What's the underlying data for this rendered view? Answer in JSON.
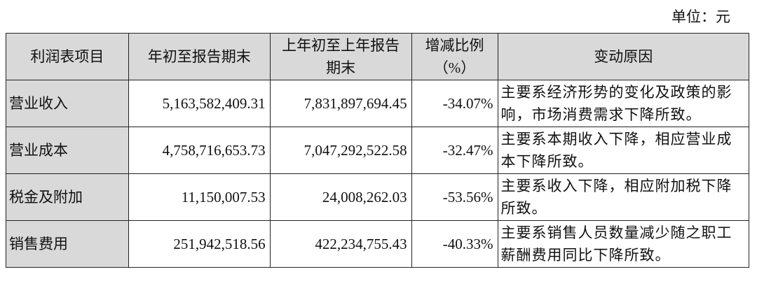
{
  "unit_label": "单位：元",
  "headers": [
    "利润表项目",
    "年初至报告期末",
    "上年初至上年报告期末",
    "增减比例（%）",
    "变动原因"
  ],
  "rows": [
    {
      "item": "营业收入",
      "current": "5,163,582,409.31",
      "previous": "7,831,897,694.45",
      "change": "-34.07%",
      "reason": "主要系经济形势的变化及政策的影响，市场消费需求下降所致。"
    },
    {
      "item": "营业成本",
      "current": "4,758,716,653.73",
      "previous": "7,047,292,522.58",
      "change": "-32.47%",
      "reason": "主要系本期收入下降，相应营业成本下降所致。"
    },
    {
      "item": "税金及附加",
      "current": "11,150,007.53",
      "previous": "24,008,262.03",
      "change": "-53.56%",
      "reason": "主要系收入下降，相应附加税下降所致。"
    },
    {
      "item": "销售费用",
      "current": "251,942,518.56",
      "previous": "422,234,755.43",
      "change": "-40.33%",
      "reason": "主要系销售人员数量减少随之职工薪酬费用同比下降所致。"
    }
  ]
}
